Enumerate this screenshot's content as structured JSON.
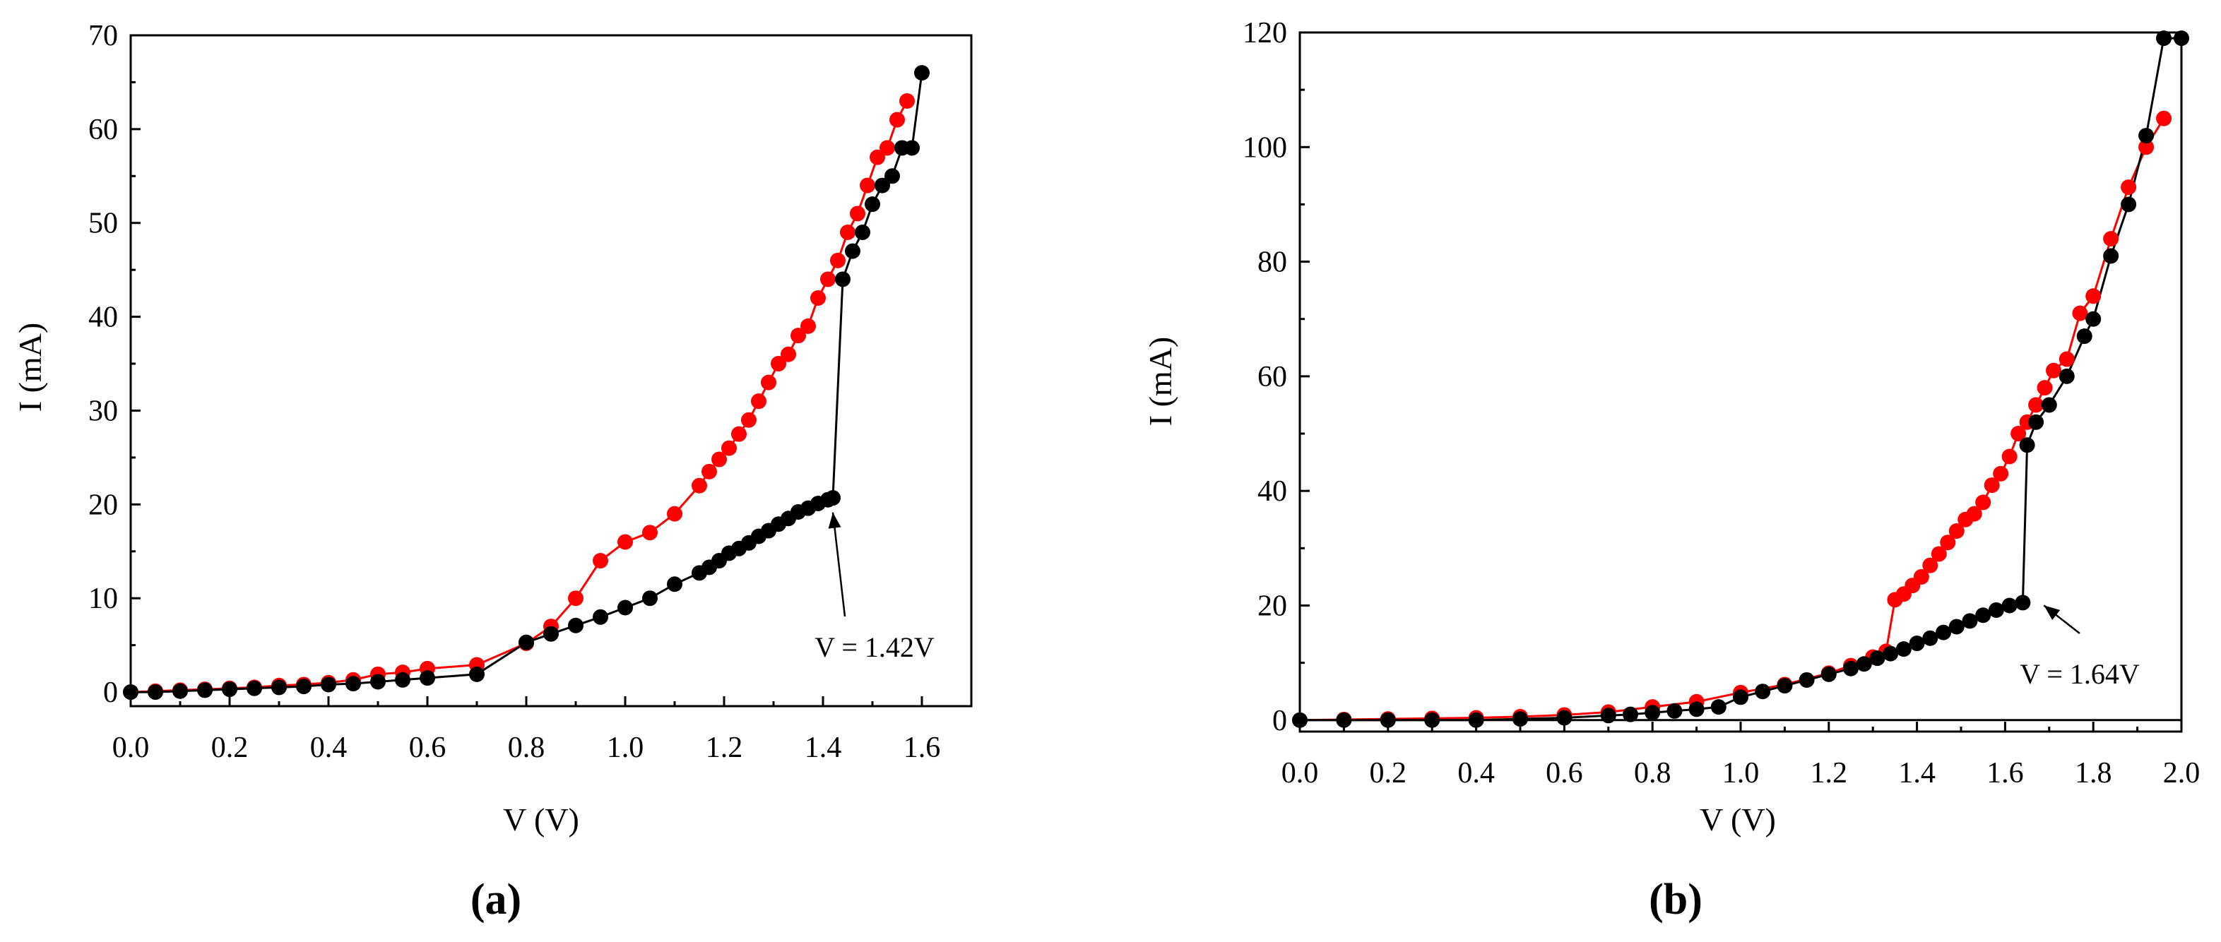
{
  "colors": {
    "series_black": "#000000",
    "series_red": "#ff0000",
    "axis": "#000000"
  },
  "chart_data": [
    {
      "type": "line",
      "panel_label": "(a)",
      "xlabel": "V (V)",
      "ylabel": "I (mA)",
      "xlim": [
        0.0,
        1.7
      ],
      "ylim": [
        -1.5,
        70
      ],
      "xticks": [
        0.0,
        0.2,
        0.4,
        0.6,
        0.8,
        1.0,
        1.2,
        1.4,
        1.6
      ],
      "xtick_labels": [
        "0.0",
        "0.2",
        "0.4",
        "0.6",
        "0.8",
        "1.0",
        "1.2",
        "1.4",
        "1.6"
      ],
      "yticks": [
        0,
        10,
        20,
        30,
        40,
        50,
        60,
        70
      ],
      "ytick_labels": [
        "0",
        "10",
        "20",
        "30",
        "40",
        "50",
        "60",
        "70"
      ],
      "grid": false,
      "annotation": {
        "text": "V = 1.42V",
        "points_to": [
          1.42,
          20.5
        ]
      },
      "series": [
        {
          "name": "black",
          "color": "#000000",
          "x": [
            0.0,
            0.05,
            0.1,
            0.15,
            0.2,
            0.25,
            0.3,
            0.35,
            0.4,
            0.45,
            0.5,
            0.55,
            0.6,
            0.7,
            0.8,
            0.85,
            0.9,
            0.95,
            1.0,
            1.05,
            1.1,
            1.15,
            1.17,
            1.19,
            1.21,
            1.23,
            1.25,
            1.27,
            1.29,
            1.31,
            1.33,
            1.35,
            1.37,
            1.39,
            1.41,
            1.42,
            1.44,
            1.46,
            1.48,
            1.5,
            1.52,
            1.54,
            1.56,
            1.58,
            1.6
          ],
          "y": [
            0,
            0,
            0.1,
            0.2,
            0.3,
            0.4,
            0.5,
            0.6,
            0.8,
            0.9,
            1.1,
            1.3,
            1.5,
            1.9,
            5.3,
            6.2,
            7.1,
            8.0,
            9.0,
            10.0,
            11.5,
            12.7,
            13.3,
            14.0,
            14.8,
            15.3,
            15.9,
            16.6,
            17.2,
            17.9,
            18.5,
            19.2,
            19.6,
            20.1,
            20.5,
            20.7,
            44.0,
            47.0,
            49.0,
            52.0,
            54.0,
            55.0,
            58.0,
            58.0,
            66.0
          ]
        },
        {
          "name": "red",
          "color": "#ff0000",
          "x": [
            0.0,
            0.05,
            0.1,
            0.15,
            0.2,
            0.25,
            0.3,
            0.35,
            0.4,
            0.45,
            0.5,
            0.55,
            0.6,
            0.7,
            0.8,
            0.85,
            0.9,
            0.95,
            1.0,
            1.05,
            1.1,
            1.15,
            1.17,
            1.19,
            1.21,
            1.23,
            1.25,
            1.27,
            1.29,
            1.31,
            1.33,
            1.35,
            1.37,
            1.39,
            1.41,
            1.43,
            1.45,
            1.47,
            1.49,
            1.51,
            1.53,
            1.55,
            1.57
          ],
          "y": [
            0,
            0.1,
            0.2,
            0.3,
            0.4,
            0.5,
            0.7,
            0.8,
            1.0,
            1.3,
            1.9,
            2.1,
            2.5,
            2.9,
            5.2,
            7.0,
            10.0,
            14.0,
            16.0,
            17.0,
            19.0,
            22.0,
            23.5,
            24.8,
            26.0,
            27.5,
            29.0,
            31.0,
            33.0,
            35.0,
            36.0,
            38.0,
            39.0,
            42.0,
            44.0,
            46.0,
            49.0,
            51.0,
            54.0,
            57.0,
            58.0,
            61.0,
            63.0
          ]
        }
      ]
    },
    {
      "type": "line",
      "panel_label": "(b)",
      "xlabel": "V (V)",
      "ylabel": "I (mA)",
      "xlim": [
        0.0,
        2.0
      ],
      "ylim": [
        -2,
        120
      ],
      "xticks": [
        0.0,
        0.2,
        0.4,
        0.6,
        0.8,
        1.0,
        1.2,
        1.4,
        1.6,
        1.8,
        2.0
      ],
      "xtick_labels": [
        "0.0",
        "0.2",
        "0.4",
        "0.6",
        "0.8",
        "1.0",
        "1.2",
        "1.4",
        "1.6",
        "1.8",
        "2.0"
      ],
      "yticks": [
        0,
        20,
        40,
        60,
        80,
        100,
        120
      ],
      "ytick_labels": [
        "0",
        "20",
        "40",
        "60",
        "80",
        "100",
        "120"
      ],
      "grid": false,
      "annotation": {
        "text": "V = 1.64V",
        "points_to": [
          1.64,
          20.5
        ]
      },
      "series": [
        {
          "name": "black",
          "color": "#000000",
          "x": [
            0.0,
            0.1,
            0.2,
            0.3,
            0.4,
            0.5,
            0.6,
            0.7,
            0.75,
            0.8,
            0.85,
            0.9,
            0.95,
            1.0,
            1.05,
            1.1,
            1.15,
            1.2,
            1.25,
            1.28,
            1.31,
            1.34,
            1.37,
            1.4,
            1.43,
            1.46,
            1.49,
            1.52,
            1.55,
            1.58,
            1.61,
            1.64,
            1.65,
            1.67,
            1.7,
            1.74,
            1.78,
            1.8,
            1.84,
            1.88,
            1.92,
            1.96,
            2.0
          ],
          "y": [
            0,
            0,
            0,
            0,
            0,
            0.2,
            0.4,
            0.8,
            1.0,
            1.3,
            1.6,
            1.9,
            2.3,
            4.0,
            5.0,
            6.0,
            7.0,
            8.0,
            9.0,
            9.8,
            10.8,
            11.6,
            12.4,
            13.4,
            14.3,
            15.3,
            16.3,
            17.3,
            18.3,
            19.2,
            20.0,
            20.5,
            48.0,
            52.0,
            55.0,
            60.0,
            67.0,
            70.0,
            81.0,
            90.0,
            102.0,
            119.0,
            119.0
          ]
        },
        {
          "name": "red",
          "color": "#ff0000",
          "x": [
            0.0,
            0.1,
            0.2,
            0.3,
            0.4,
            0.5,
            0.6,
            0.7,
            0.8,
            0.9,
            1.0,
            1.1,
            1.2,
            1.25,
            1.3,
            1.33,
            1.35,
            1.37,
            1.39,
            1.41,
            1.43,
            1.45,
            1.47,
            1.49,
            1.51,
            1.53,
            1.55,
            1.57,
            1.59,
            1.61,
            1.63,
            1.65,
            1.67,
            1.69,
            1.71,
            1.74,
            1.77,
            1.8,
            1.84,
            1.88,
            1.92,
            1.96
          ],
          "y": [
            0,
            0.1,
            0.2,
            0.3,
            0.4,
            0.6,
            0.9,
            1.4,
            2.3,
            3.2,
            4.8,
            6.2,
            8.2,
            9.5,
            11.0,
            12.0,
            21.0,
            22.0,
            23.5,
            25.0,
            27.0,
            29.0,
            31.0,
            33.0,
            35.0,
            36.0,
            38.0,
            41.0,
            43.0,
            46.0,
            50.0,
            52.0,
            55.0,
            58.0,
            61.0,
            63.0,
            71.0,
            74.0,
            84.0,
            93.0,
            100.0,
            105.0
          ]
        }
      ]
    }
  ]
}
